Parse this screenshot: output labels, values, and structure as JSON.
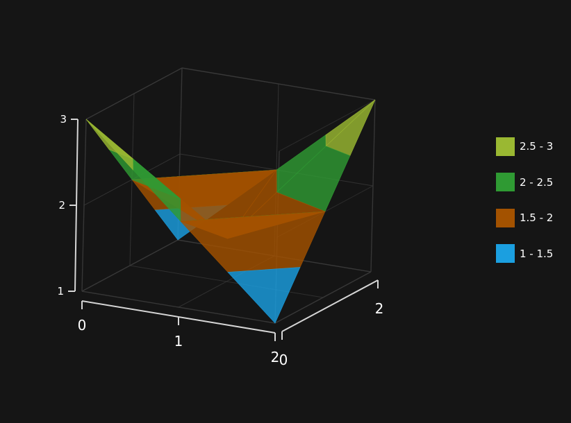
{
  "chart_data": {
    "type": "surface-3d",
    "title": "",
    "xlabel": "",
    "ylabel": "",
    "zlabel": "",
    "x_ticks": [
      "0",
      "1",
      "2"
    ],
    "y_ticks": [
      "0",
      "2"
    ],
    "z_ticks": [
      "1",
      "2",
      "3"
    ],
    "xlim": [
      0,
      2
    ],
    "ylim": [
      0,
      2
    ],
    "zlim": [
      1,
      3
    ],
    "grid": true,
    "legend_position": "right",
    "surface": {
      "x": [
        0,
        1,
        2
      ],
      "y": [
        0,
        1,
        2
      ],
      "z": [
        [
          3,
          2,
          1
        ],
        [
          2,
          1.5,
          2
        ],
        [
          1,
          2,
          3
        ]
      ]
    },
    "bands": [
      {
        "label": "2.5 - 3",
        "min": 2.5,
        "max": 3,
        "color": "#9ab832"
      },
      {
        "label": "2 - 2.5",
        "min": 2,
        "max": 2.5,
        "color": "#2f9a33"
      },
      {
        "label": "1.5 - 2",
        "min": 1.5,
        "max": 2,
        "color": "#a35200"
      },
      {
        "label": "1 - 1.5",
        "min": 1,
        "max": 1.5,
        "color": "#1b9fe0"
      }
    ]
  },
  "colors": {
    "background": "#151515",
    "grid": "#3a3a3a",
    "axis": "#d6d6d6"
  }
}
